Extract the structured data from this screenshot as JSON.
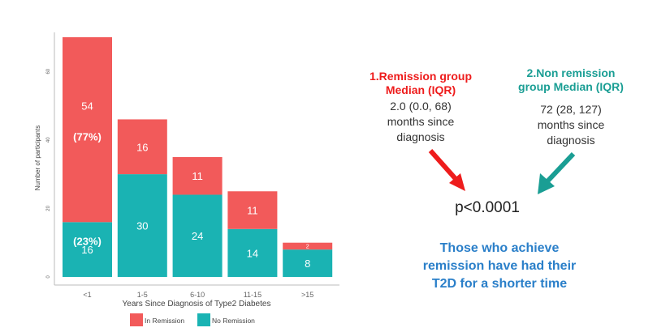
{
  "chart_data": {
    "type": "bar",
    "stacked": true,
    "title": "",
    "xlabel": "Years Since Diagnosis of Type2 Diabetes",
    "ylabel": "Number of participants",
    "ylim": [
      0,
      70
    ],
    "yticks": [
      0,
      20,
      40,
      60
    ],
    "categories": [
      "<1",
      "1-5",
      "6-10",
      "11-15",
      ">15"
    ],
    "series": [
      {
        "name": "No Remission",
        "color": "#1ab3b3",
        "values": [
          16,
          30,
          24,
          14,
          8
        ],
        "labels": [
          "16",
          "30",
          "24",
          "14",
          "8"
        ]
      },
      {
        "name": "In Remission",
        "color": "#f25a5a",
        "values": [
          54,
          16,
          11,
          11,
          2
        ],
        "labels": [
          "54",
          "16",
          "11",
          "11",
          "2"
        ]
      }
    ],
    "annotations": {
      "in_remission_pct_lt1": "(77%)",
      "no_remission_pct_lt1": "(23%)"
    },
    "legend_position": "bottom",
    "grid": false
  },
  "panel": {
    "group1": {
      "title_line1": "1.Remission group",
      "title_line2": "Median (IQR)",
      "value": "2.0 (0.0, 68)",
      "unit_line1": "months since",
      "unit_line2": "diagnosis",
      "color": "#ee1c1c"
    },
    "group2": {
      "title_line1": "2.Non remission",
      "title_line2": "group Median (IQR)",
      "value": "72 (28, 127)",
      "unit_line1": "months since",
      "unit_line2": "diagnosis",
      "color": "#1a9e94"
    },
    "p_value": "p<0.0001",
    "conclusion_line1": "Those who achieve",
    "conclusion_line2": "remission have had their",
    "conclusion_line3": "T2D for a shorter time"
  }
}
